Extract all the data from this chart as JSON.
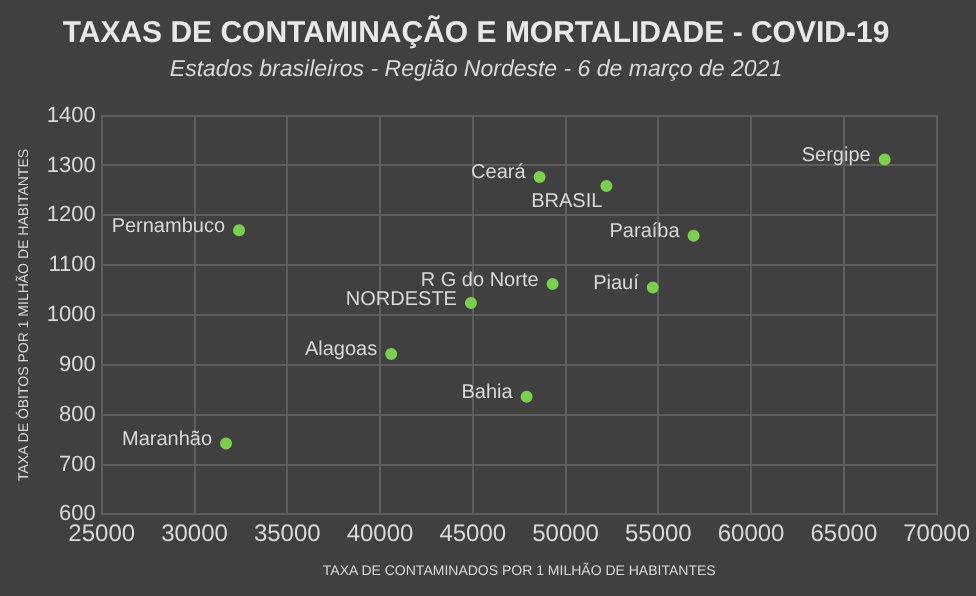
{
  "chart_data": {
    "type": "scatter",
    "title": "TAXAS DE CONTAMINAÇÃO E MORTALIDADE - COVID-19",
    "subtitle": "Estados brasileiros - Região Nordeste - 6 de março de 2021",
    "xlabel": "TAXA DE CONTAMINADOS POR 1 MILHÃO DE HABITANTES",
    "ylabel": "TAXA DE ÓBITOS POR 1 MILHÃO DE HABITANTES",
    "series": [
      {
        "color": "#7ccf4f",
        "x": [
          32400,
          31700,
          40600,
          44900,
          48600,
          52200,
          67200,
          56900,
          49300,
          54700,
          47900
        ],
        "values": [
          1170,
          742,
          922,
          1024,
          1277,
          1259,
          1312,
          1159,
          1062,
          1055,
          836
        ]
      }
    ],
    "annotations": [
      {
        "text": "Pernambuco",
        "x": 32400,
        "y": 1170
      },
      {
        "text": "Maranhão",
        "x": 31700,
        "y": 742
      },
      {
        "text": "Alagoas",
        "x": 40600,
        "y": 922
      },
      {
        "text": "NORDESTE",
        "x": 44900,
        "y": 1024
      },
      {
        "text": "Ceará",
        "x": 48600,
        "y": 1277
      },
      {
        "text": "BRASIL",
        "x": 52200,
        "y": 1259
      },
      {
        "text": "Sergipe",
        "x": 67200,
        "y": 1312
      },
      {
        "text": "Paraíba",
        "x": 56900,
        "y": 1159
      },
      {
        "text": "R G do Norte",
        "x": 49300,
        "y": 1062
      },
      {
        "text": "Piauí",
        "x": 54700,
        "y": 1055
      },
      {
        "text": "Bahia",
        "x": 47900,
        "y": 836
      }
    ],
    "xlim": [
      25000,
      70000
    ],
    "xticks": [
      25000,
      30000,
      35000,
      40000,
      45000,
      50000,
      55000,
      60000,
      65000,
      70000
    ],
    "ylim": [
      600,
      1400
    ],
    "yticks": [
      600,
      700,
      800,
      900,
      1000,
      1100,
      1200,
      1300,
      1400
    ],
    "grid": true,
    "legend": false,
    "marker": "circle"
  }
}
